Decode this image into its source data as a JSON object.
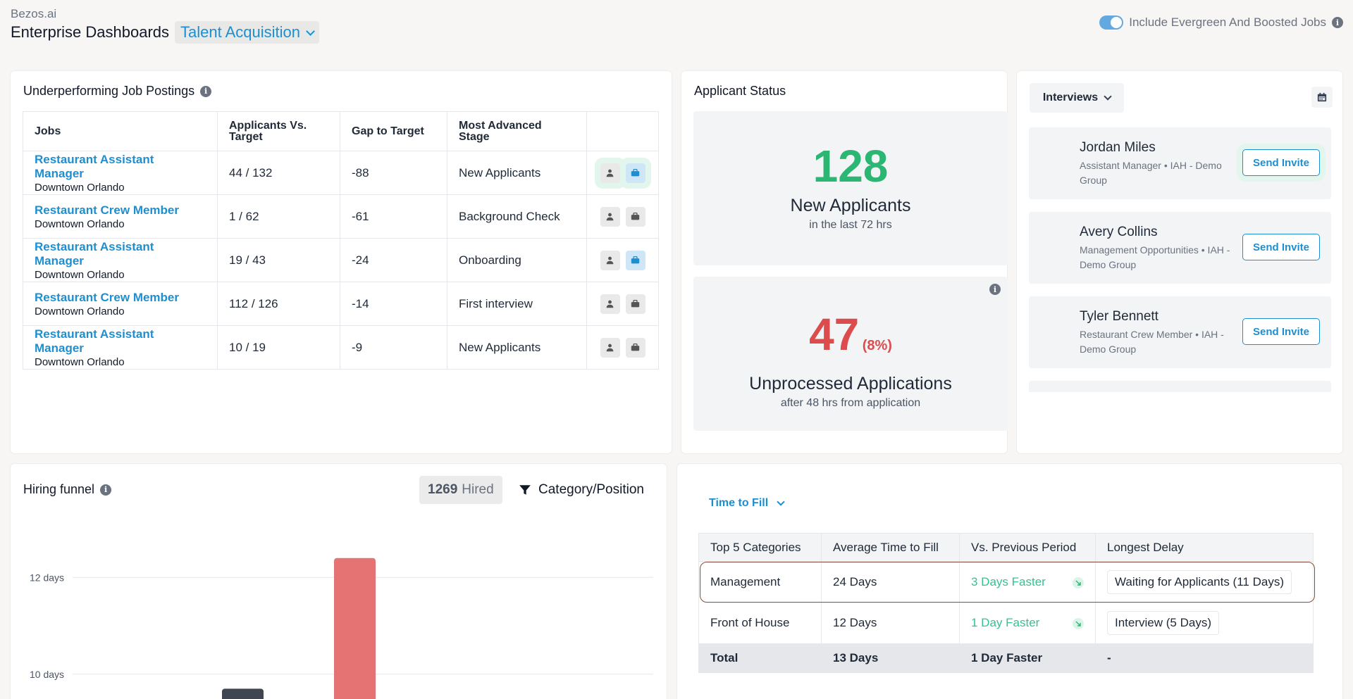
{
  "header": {
    "brand": "Bezos.ai",
    "title": "Enterprise Dashboards",
    "department": "Talent Acquisition",
    "toggle_label": "Include Evergreen And Boosted Jobs"
  },
  "underperforming": {
    "title": "Underperforming Job Postings",
    "columns": [
      "Jobs",
      "Applicants Vs. Target",
      "Gap to Target",
      "Most Advanced Stage",
      ""
    ],
    "rows": [
      {
        "job": "Restaurant Assistant Manager",
        "location": "Downtown Orlando",
        "applicants": "44 / 132",
        "gap": "-88",
        "stage": "New Applicants"
      },
      {
        "job": "Restaurant Crew Member",
        "location": "Downtown Orlando",
        "applicants": "1 / 62",
        "gap": "-61",
        "stage": "Background Check"
      },
      {
        "job": "Restaurant Assistant Manager",
        "location": "Downtown Orlando",
        "applicants": "19 / 43",
        "gap": "-24",
        "stage": "Onboarding"
      },
      {
        "job": "Restaurant Crew Member",
        "location": "Downtown Orlando",
        "applicants": "112 / 126",
        "gap": "-14",
        "stage": "First interview"
      },
      {
        "job": "Restaurant Assistant Manager",
        "location": "Downtown Orlando",
        "applicants": "10 / 19",
        "gap": "-9",
        "stage": "New Applicants"
      }
    ]
  },
  "applicant_status": {
    "title": "Applicant Status",
    "new_count": "128",
    "new_label": "New Applicants",
    "new_sub": "in the last 72 hrs",
    "unprocessed_count": "47",
    "unprocessed_pct": "(8%)",
    "unprocessed_label": "Unprocessed Applications",
    "unprocessed_sub": "after 48 hrs from application"
  },
  "interviews": {
    "selector": "Interviews",
    "candidates": [
      {
        "name": "Jordan Miles",
        "role": "Assistant Manager • IAH - Demo Group",
        "action": "Send Invite"
      },
      {
        "name": "Avery Collins",
        "role": "Management Opportunities • IAH - Demo Group",
        "action": "Send Invite"
      },
      {
        "name": "Tyler Bennett",
        "role": "Restaurant Crew Member • IAH - Demo Group",
        "action": "Send Invite"
      }
    ]
  },
  "hiring_funnel": {
    "title": "Hiring funnel",
    "hired_count": "1269",
    "hired_label": "Hired",
    "filter_label": "Category/Position"
  },
  "chart_data": {
    "type": "bar",
    "title": "",
    "xlabel": "",
    "ylabel": "",
    "y_tick_labels": [
      "12 days",
      "10 days"
    ],
    "y_ticks": [
      12,
      10
    ],
    "ylim": [
      9.4,
      13.4
    ],
    "bars": [
      {
        "value": 9.7,
        "color": "#3f4652"
      },
      {
        "value": 12.4,
        "color": "#e57373"
      }
    ],
    "grid": true
  },
  "time_to_fill": {
    "selector": "Time to Fill",
    "columns": [
      "Top 5 Categories",
      "Average Time to Fill",
      "Vs. Previous Period",
      "Longest Delay"
    ],
    "rows": [
      {
        "category": "Management",
        "avg": "24 Days",
        "vs": "3 Days Faster",
        "delay": "Waiting for Applicants (11 Days)"
      },
      {
        "category": "Front of House",
        "avg": "12 Days",
        "vs": "1 Day Faster",
        "delay": "Interview (5 Days)"
      }
    ],
    "total": {
      "label": "Total",
      "avg": "13 Days",
      "vs": "1 Day Faster",
      "delay": "-"
    }
  },
  "colors": {
    "accent": "#1d8fd1",
    "positive": "#2bb673",
    "negative": "#dc4c4c"
  }
}
